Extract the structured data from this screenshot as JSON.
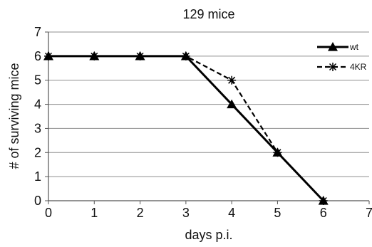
{
  "chart_data": {
    "type": "line",
    "title": "129 mice",
    "xlabel": "days p.i.",
    "ylabel": "# of surviving mice",
    "xlim": [
      0,
      7
    ],
    "ylim": [
      0,
      7
    ],
    "xticks": [
      0,
      1,
      2,
      3,
      4,
      5,
      6,
      7
    ],
    "yticks": [
      0,
      1,
      2,
      3,
      4,
      5,
      6,
      7
    ],
    "grid": "horizontal",
    "legend_position": "top-right",
    "series": [
      {
        "name": "wt",
        "x": [
          0,
          1,
          2,
          3,
          4,
          5,
          6
        ],
        "y": [
          6,
          6,
          6,
          6,
          4,
          2,
          0
        ],
        "marker": "triangle",
        "line_style": "solid",
        "color": "#000000"
      },
      {
        "name": "4KR",
        "x": [
          0,
          1,
          2,
          3,
          4,
          5,
          6
        ],
        "y": [
          6,
          6,
          6,
          6,
          5,
          2,
          0
        ],
        "marker": "star",
        "line_style": "dashed",
        "color": "#000000"
      }
    ],
    "grid_color": "#8f8f8f",
    "axis_color": "#555555"
  }
}
